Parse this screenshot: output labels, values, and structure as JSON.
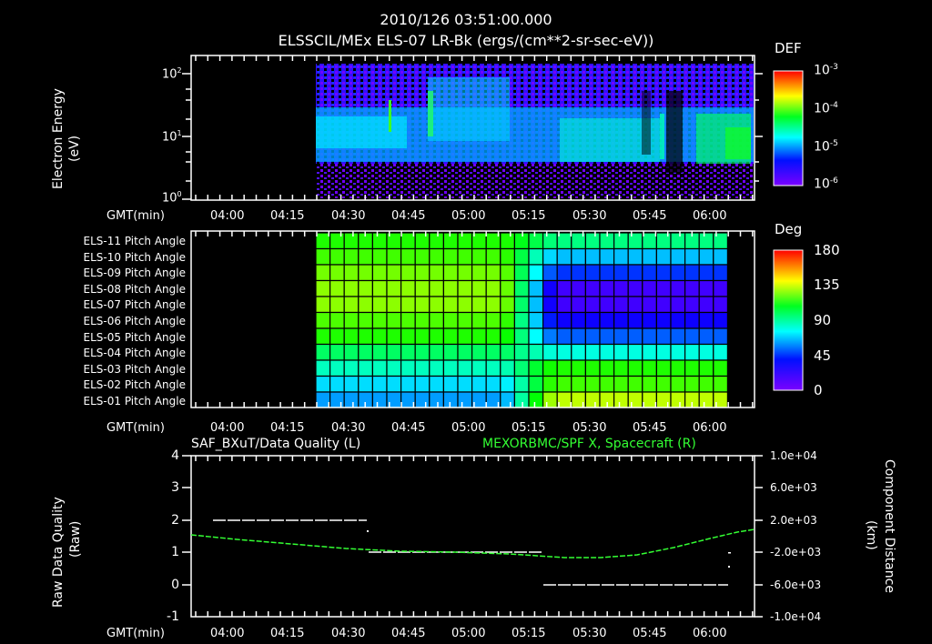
{
  "header": {
    "timestamp": "2010/126 03:51:00.000",
    "subtitle": "ELSSCIL/MEx ELS-07 LR-Bk  (ergs/(cm**2-sr-sec-eV))"
  },
  "time_axis": {
    "label": "GMT(min)",
    "ticks": [
      "04:00",
      "04:15",
      "04:30",
      "04:45",
      "05:00",
      "05:15",
      "05:30",
      "05:45",
      "06:00"
    ]
  },
  "panel1": {
    "ylabel_line1": "Electron Energy",
    "ylabel_line2": "(eV)",
    "yticks": [
      "10",
      "10",
      "10"
    ],
    "yexp": [
      "2",
      "1",
      "0"
    ],
    "colorbar_title": "DEF",
    "colorbar_ticks": [
      "10",
      "10",
      "10",
      "10"
    ],
    "colorbar_exp": [
      "-3",
      "-4",
      "-5",
      "-6"
    ]
  },
  "panel2": {
    "rows": [
      "ELS-11 Pitch Angle",
      "ELS-10 Pitch Angle",
      "ELS-09 Pitch Angle",
      "ELS-08 Pitch Angle",
      "ELS-07 Pitch Angle",
      "ELS-06 Pitch Angle",
      "ELS-05 Pitch Angle",
      "ELS-04 Pitch Angle",
      "ELS-03 Pitch Angle",
      "ELS-02 Pitch Angle",
      "ELS-01 Pitch Angle"
    ],
    "colorbar_title": "Deg",
    "colorbar_ticks": [
      "180",
      "135",
      "90",
      "45",
      "0"
    ]
  },
  "panel3": {
    "left_title": "SAF_BXuT/Data Quality (L)",
    "right_title": "MEXORBMC/SPF X, Spacecraft (R)",
    "right_title_color": "#33ff33",
    "ylabel_left_line1": "Raw Data Quality",
    "ylabel_left_line2": "(Raw)",
    "ylabel_right_line1": "Component Distance",
    "ylabel_right_line2": "(km)",
    "left_ticks": [
      "4",
      "3",
      "2",
      "1",
      "0",
      "-1"
    ],
    "right_ticks": [
      "1.0e+04",
      "6.0e+03",
      "2.0e+03",
      "-2.0e+03",
      "-6.0e+03",
      "-1.0e+04"
    ]
  },
  "chart_data": [
    {
      "type": "heatmap",
      "title": "ELSSCIL/MEx ELS-07 LR-Bk (ergs/(cm**2-sr-sec-eV))",
      "xlabel": "GMT(min)",
      "ylabel": "Electron Energy (eV)",
      "yscale": "log",
      "ylim": [
        1,
        150
      ],
      "x_range": [
        "03:51",
        "06:08"
      ],
      "data_start": "04:22",
      "colorbar": {
        "label": "DEF",
        "scale": "log",
        "range": [
          1e-06,
          0.001
        ]
      },
      "description": "Spectrogram with data from ~04:22 onward; enhanced flux (cyan/green, ~1e-5 to 1e-4) around 3-20 eV, bursts near 04:38, 04:45-05:20, 05:22-05:45 and 05:52-06:08"
    },
    {
      "type": "heatmap",
      "title": "Pitch Angle",
      "xlabel": "GMT(min)",
      "rows": [
        "ELS-11",
        "ELS-10",
        "ELS-09",
        "ELS-08",
        "ELS-07",
        "ELS-06",
        "ELS-05",
        "ELS-04",
        "ELS-03",
        "ELS-02",
        "ELS-01"
      ],
      "colorbar": {
        "label": "Deg",
        "range": [
          0,
          180
        ]
      },
      "values_before_0512": [
        105,
        110,
        118,
        122,
        122,
        112,
        105,
        85,
        70,
        55,
        45
      ],
      "values_after_0518": [
        80,
        50,
        28,
        10,
        10,
        18,
        35,
        65,
        105,
        110,
        130
      ]
    },
    {
      "type": "line",
      "xlabel": "GMT(min)",
      "series": [
        {
          "name": "SAF_BXuT/Data Quality (L)",
          "color": "#ffffff",
          "x": [
            "03:56",
            "04:33",
            "04:34",
            "05:18",
            "05:19",
            "06:03"
          ],
          "values": [
            2,
            2,
            1,
            1,
            0,
            0
          ]
        },
        {
          "name": "MEXORBMC/SPF X, Spacecraft (R)",
          "color": "#33ff33",
          "x": [
            "03:51",
            "04:15",
            "04:30",
            "04:45",
            "05:00",
            "05:15",
            "05:30",
            "05:45",
            "06:00",
            "06:08"
          ],
          "values": [
            -500,
            -1300,
            -2100,
            -2600,
            -2900,
            -3200,
            -3200,
            -2600,
            -1300,
            -300
          ]
        }
      ],
      "ylim_left": [
        -1,
        4
      ],
      "ylim_right": [
        -10000,
        10000
      ]
    }
  ]
}
